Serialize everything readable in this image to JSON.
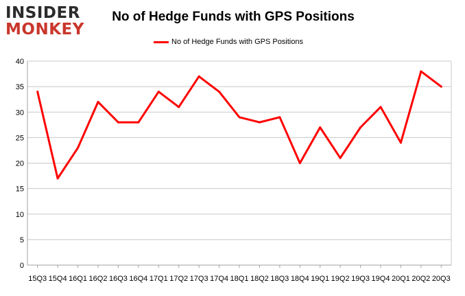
{
  "logo": {
    "line1": "INSIDER",
    "line2": "MONKEY"
  },
  "chart_data": {
    "type": "line",
    "title": "No of Hedge Funds with GPS Positions",
    "xlabel": "",
    "ylabel": "",
    "categories": [
      "15Q3",
      "15Q4",
      "16Q1",
      "16Q2",
      "16Q3",
      "16Q4",
      "17Q1",
      "17Q2",
      "17Q3",
      "17Q4",
      "18Q1",
      "18Q2",
      "18Q3",
      "18Q4",
      "19Q1",
      "19Q2",
      "19Q3",
      "19Q4",
      "20Q1",
      "20Q2",
      "20Q3"
    ],
    "series": [
      {
        "name": "No of Hedge Funds with GPS Positions",
        "values": [
          34,
          17,
          23,
          32,
          28,
          28,
          34,
          31,
          37,
          34,
          29,
          28,
          29,
          20,
          27,
          21,
          27,
          31,
          24,
          38,
          35
        ],
        "color": "#ff0000"
      }
    ],
    "ylim": [
      0,
      40
    ],
    "yticks": [
      0,
      5,
      10,
      15,
      20,
      25,
      30,
      35,
      40
    ],
    "grid": true,
    "legend": "top-center"
  }
}
